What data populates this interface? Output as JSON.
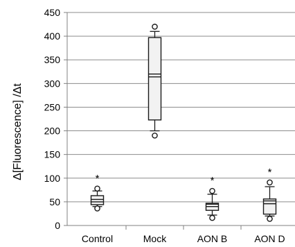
{
  "chart_data": {
    "type": "box",
    "ylabel": "Δ[Fluorescence] /Δt",
    "xlabel": "",
    "ylim": [
      0,
      450
    ],
    "yticks": [
      0,
      50,
      100,
      150,
      200,
      250,
      300,
      350,
      400,
      450
    ],
    "ytick_labels": [
      "0",
      "50",
      "100",
      "150",
      "200",
      "250",
      "300",
      "350",
      "400",
      "450"
    ],
    "grid": "horizontal",
    "categories": [
      "Control",
      "Mock",
      "AON B",
      "AON D"
    ],
    "boxes": [
      {
        "category": "Control",
        "q1": 44,
        "median": 50,
        "mean": 55,
        "q3": 63,
        "whisker_low": 40,
        "whisker_high": 73,
        "outliers": [
          36,
          78
        ],
        "annotation": "*"
      },
      {
        "category": "Mock",
        "q1": 223,
        "median": 314,
        "mean": 320,
        "q3": 397,
        "whisker_low": 200,
        "whisker_high": 410,
        "outliers": [
          190,
          420
        ],
        "annotation": ""
      },
      {
        "category": "AON B",
        "q1": 32,
        "median": 40,
        "mean": 45,
        "q3": 47,
        "whisker_low": 22,
        "whisker_high": 66,
        "outliers": [
          16,
          73
        ],
        "annotation": "*"
      },
      {
        "category": "AON D",
        "q1": 24,
        "median": 46,
        "mean": 52,
        "q3": 56,
        "whisker_low": 20,
        "whisker_high": 82,
        "outliers": [
          14,
          91
        ],
        "annotation": "*"
      }
    ],
    "colors": {
      "box_fill": "#f2f2f2",
      "stroke": "#1a1a1a",
      "grid": "#8c8c8c",
      "axis": "#808080"
    }
  }
}
